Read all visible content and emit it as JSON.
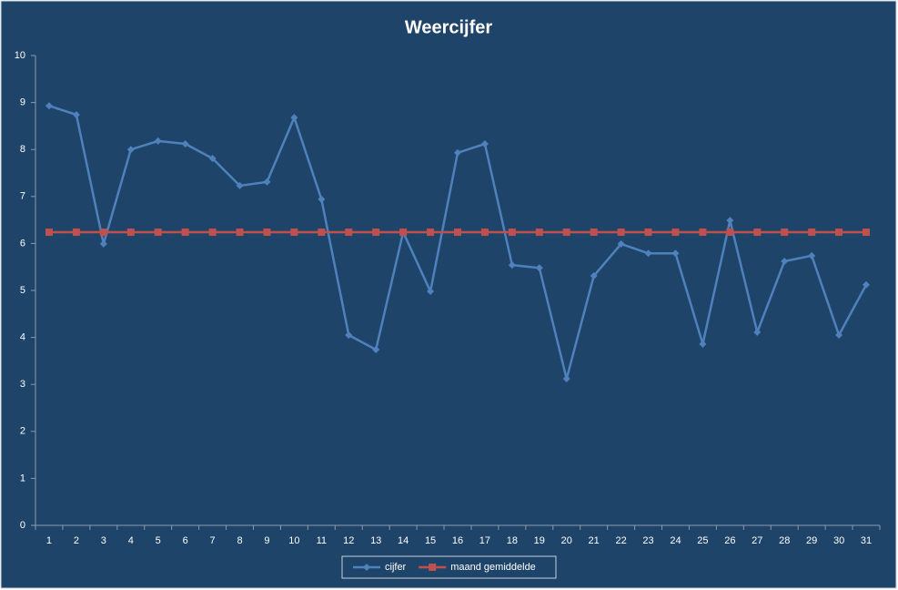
{
  "chart_data": {
    "type": "line",
    "title": "Weercijfer",
    "categories": [
      "1",
      "2",
      "3",
      "4",
      "5",
      "6",
      "7",
      "8",
      "9",
      "10",
      "11",
      "12",
      "13",
      "14",
      "15",
      "16",
      "17",
      "18",
      "19",
      "20",
      "21",
      "22",
      "23",
      "24",
      "25",
      "26",
      "27",
      "28",
      "29",
      "30",
      "31"
    ],
    "series": [
      {
        "name": "cijfer",
        "color": "#4f81bd",
        "marker": "diamond",
        "values": [
          8.93,
          8.74,
          5.99,
          8.0,
          8.18,
          8.12,
          7.81,
          7.23,
          7.31,
          8.68,
          6.94,
          4.05,
          3.74,
          6.24,
          4.98,
          7.93,
          8.12,
          5.54,
          5.48,
          3.12,
          5.31,
          5.99,
          5.79,
          5.79,
          3.86,
          6.49,
          4.11,
          5.62,
          5.74,
          4.05,
          5.12
        ]
      },
      {
        "name": "maand gemiddelde",
        "color": "#c0504d",
        "marker": "square",
        "values": [
          6.24,
          6.24,
          6.24,
          6.24,
          6.24,
          6.24,
          6.24,
          6.24,
          6.24,
          6.24,
          6.24,
          6.24,
          6.24,
          6.24,
          6.24,
          6.24,
          6.24,
          6.24,
          6.24,
          6.24,
          6.24,
          6.24,
          6.24,
          6.24,
          6.24,
          6.24,
          6.24,
          6.24,
          6.24,
          6.24,
          6.24
        ]
      }
    ],
    "ylim": [
      0,
      10
    ],
    "yticks": [
      0,
      1,
      2,
      3,
      4,
      5,
      6,
      7,
      8,
      9,
      10
    ],
    "grid": false,
    "legend": "bottom"
  }
}
